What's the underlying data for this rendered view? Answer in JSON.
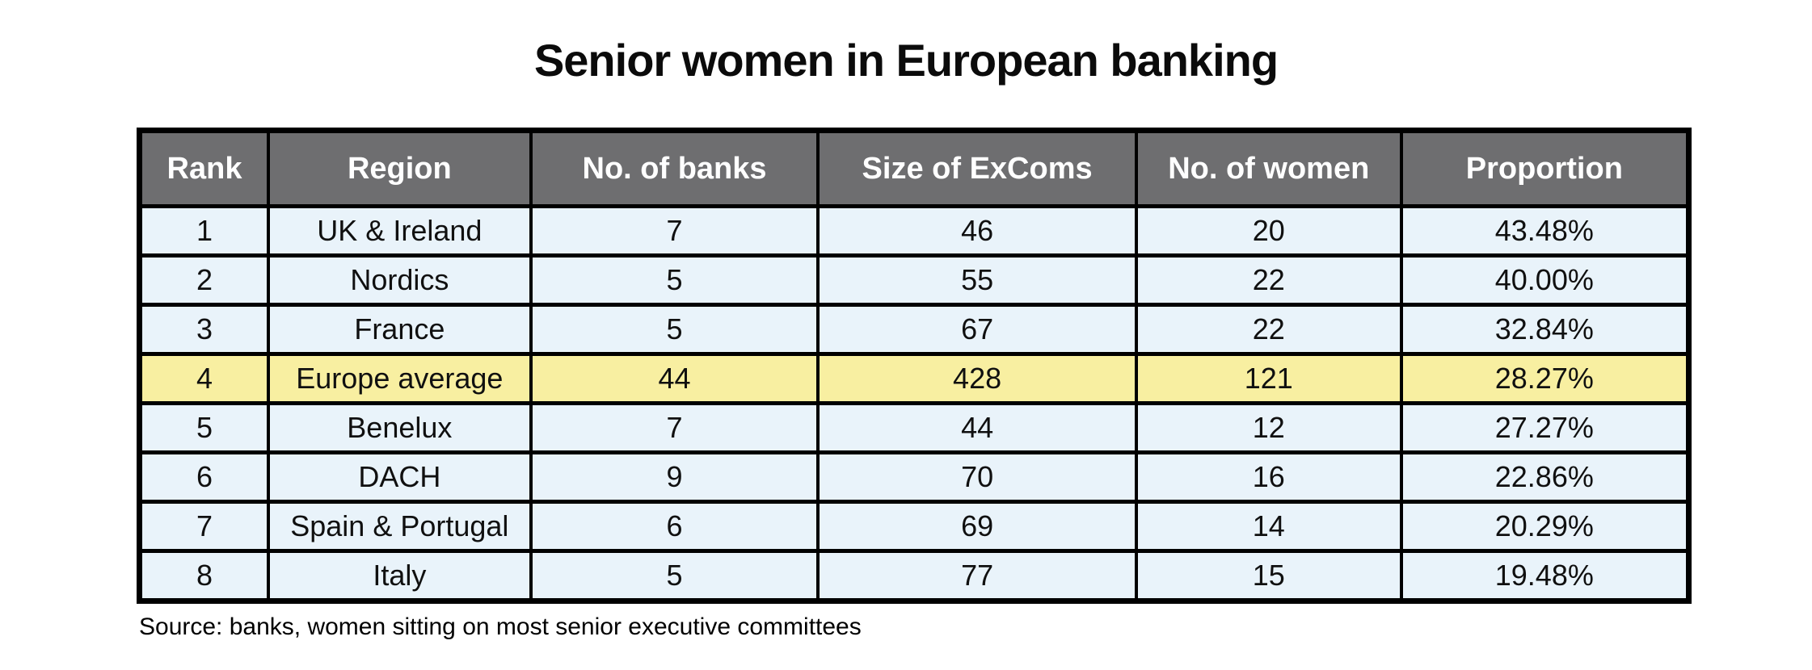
{
  "title": "Senior women in European banking",
  "source_note": "Source: banks, women sitting on most senior executive committees",
  "colors": {
    "header_bg": "#6e6e70",
    "header_text": "#ffffff",
    "row_bg": "#e9f3fa",
    "highlight_bg": "#f8efa1",
    "border": "#000000",
    "page_bg": "#ffffff"
  },
  "chart_data": {
    "type": "table",
    "title": "Senior women in European banking",
    "columns": [
      "Rank",
      "Region",
      "No. of banks",
      "Size of ExComs",
      "No. of women",
      "Proportion"
    ],
    "rows": [
      [
        "1",
        "UK & Ireland",
        "7",
        "46",
        "20",
        "43.48%"
      ],
      [
        "2",
        "Nordics",
        "5",
        "55",
        "22",
        "40.00%"
      ],
      [
        "3",
        "France",
        "5",
        "67",
        "22",
        "32.84%"
      ],
      [
        "4",
        "Europe average",
        "44",
        "428",
        "121",
        "28.27%"
      ],
      [
        "5",
        "Benelux",
        "7",
        "44",
        "12",
        "27.27%"
      ],
      [
        "6",
        "DACH",
        "9",
        "70",
        "16",
        "22.86%"
      ],
      [
        "7",
        "Spain & Portugal",
        "6",
        "69",
        "14",
        "20.29%"
      ],
      [
        "8",
        "Italy",
        "5",
        "77",
        "15",
        "19.48%"
      ]
    ],
    "highlighted_row_index": 3,
    "highlighted_row_label": "Europe average",
    "source_note": "Source: banks, women sitting on most senior executive committees"
  }
}
